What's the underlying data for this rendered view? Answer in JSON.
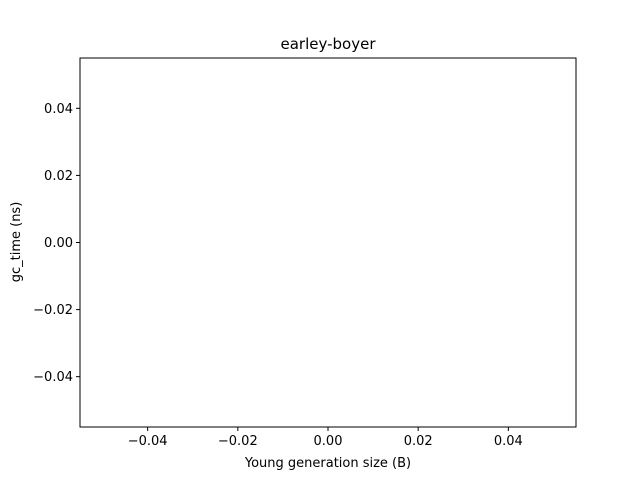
{
  "chart_data": {
    "type": "line",
    "title": "earley-boyer",
    "xlabel": "Young generation size (B)",
    "ylabel": "gc_time (ns)",
    "xlim": [
      -0.055,
      0.055
    ],
    "ylim": [
      -0.055,
      0.055
    ],
    "xticks": [
      -0.04,
      -0.02,
      0.0,
      0.02,
      0.04
    ],
    "xtick_labels": [
      "−0.04",
      "−0.02",
      "0.00",
      "0.02",
      "0.04"
    ],
    "yticks": [
      -0.04,
      -0.02,
      0.0,
      0.02,
      0.04
    ],
    "ytick_labels": [
      "−0.04",
      "−0.02",
      "0.00",
      "0.02",
      "0.04"
    ],
    "series": [],
    "grid": false,
    "legend": "none"
  }
}
